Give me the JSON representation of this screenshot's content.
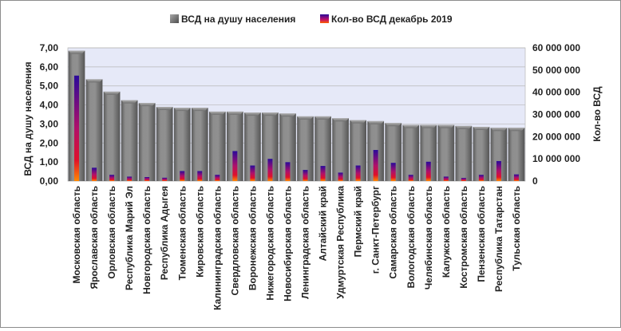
{
  "chart_data": {
    "type": "bar",
    "legend_position": "top",
    "grid": true,
    "categories": [
      "Московская область",
      "Ярославская область",
      "Орловская область",
      "Республика Марий Эл",
      "Новгородская область",
      "Республика Адыгея",
      "Тюменская область",
      "Кировская область",
      "Калининградская область",
      "Свердловская область",
      "Воронежская область",
      "Нижегородская область",
      "Новосибирская область",
      "Ленинградская область",
      "Алтайский край",
      "Удмуртская Республика",
      "Пермский край",
      "г. Санкт-Петербург",
      "Самарская область",
      "Вологодская область",
      "Челябинская область",
      "Калужская область",
      "Костромская область",
      "Пензенская область",
      "Республика Татарстан",
      "Тульская область"
    ],
    "series": [
      {
        "name": "ВСД на душу населения",
        "axis": "left",
        "color": "#8a8a8a",
        "values": [
          6.85,
          5.35,
          4.7,
          4.25,
          4.1,
          3.9,
          3.85,
          3.85,
          3.65,
          3.65,
          3.6,
          3.6,
          3.55,
          3.4,
          3.4,
          3.3,
          3.2,
          3.15,
          3.05,
          2.95,
          2.95,
          2.95,
          2.9,
          2.85,
          2.8,
          2.8
        ]
      },
      {
        "name": "Кол-во ВСД декабрь 2019",
        "axis": "right",
        "color": "#3a0fa0",
        "values": [
          47500000,
          6000000,
          2800000,
          2000000,
          1800000,
          1500000,
          4500000,
          4500000,
          2800000,
          13500000,
          7000000,
          10000000,
          8500000,
          5000000,
          6800000,
          3800000,
          7000000,
          14000000,
          8200000,
          2800000,
          8700000,
          2000000,
          1400000,
          2800000,
          9000000,
          3000000
        ]
      }
    ],
    "y_left": {
      "label": "ВСД на душу населения",
      "min": 0,
      "max": 7,
      "step": 1,
      "ticks": [
        "0,00",
        "1,00",
        "2,00",
        "3,00",
        "4,00",
        "5,00",
        "6,00",
        "7,00"
      ]
    },
    "y_right": {
      "label": "Кол-во ВСД",
      "min": 0,
      "max": 60000000,
      "step": 10000000,
      "ticks": [
        "0",
        "10 000 000",
        "20 000 000",
        "30 000 000",
        "40 000 000",
        "50 000 000",
        "60 000 000"
      ]
    }
  }
}
